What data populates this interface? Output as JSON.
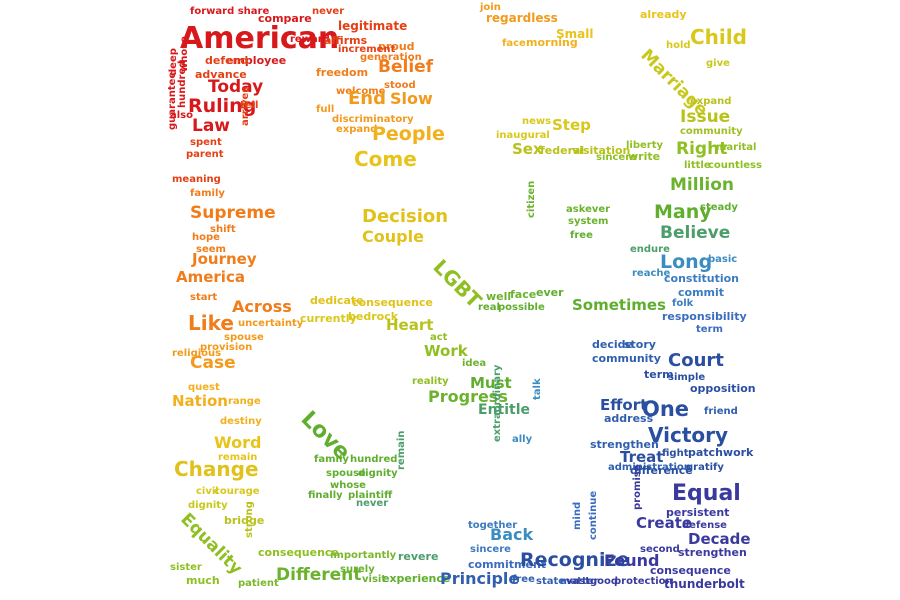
{
  "image": {
    "kind": "word-cloud",
    "subject": "LGBT love / marriage equality",
    "palette": {
      "red": "#d7191c",
      "orange": "#f07c1a",
      "yellow": "#e0c21a",
      "green": "#5fae2e",
      "blue": "#2b4fa0",
      "indigo": "#3a3a9e"
    }
  },
  "words": {
    "american": "American",
    "today": "Today",
    "ruling": "Ruling",
    "law": "Law",
    "supreme": "Supreme",
    "journey": "Journey",
    "america": "America",
    "like": "Like",
    "across": "Across",
    "case": "Case",
    "nation": "Nation",
    "word": "Word",
    "change": "Change",
    "equality": "Equality",
    "different": "Different",
    "belief": "Belief",
    "end": "End",
    "slow": "Slow",
    "people": "People",
    "come": "Come",
    "decision": "Decision",
    "couple": "Couple",
    "heart": "Heart",
    "work": "Work",
    "progress": "Progress",
    "must": "Must",
    "entitle": "Entitle",
    "love": "Love",
    "lgbt": "LGBT",
    "back": "Back",
    "principle": "Principle",
    "recognize": "Recognize",
    "found": "Found",
    "sometimes": "Sometimes",
    "step": "Step",
    "sex": "Sex",
    "child": "Child",
    "marriage": "Marriage",
    "issue": "Issue",
    "right": "Right",
    "million": "Million",
    "many": "Many",
    "believe": "Believe",
    "long": "Long",
    "court": "Court",
    "one": "One",
    "victory": "Victory",
    "effort": "Effort",
    "treat": "Treat",
    "equal": "Equal",
    "create": "Create",
    "decade": "Decade",
    "small": "Small",
    "employee": "employee",
    "forward_share": "forward share",
    "compare": "compare",
    "legitimate": "legitimate",
    "reward": "reward",
    "defend": "defend",
    "advance": "advance",
    "freedom": "freedom",
    "welcome": "welcome",
    "proud": "proud",
    "generation": "generation",
    "stood": "stood",
    "regardless": "regardless",
    "morning": "morning",
    "face": "face",
    "join": "join",
    "already": "already",
    "hold": "hold",
    "give": "give",
    "expand": "expand",
    "community": "community",
    "marital": "marital",
    "little": "little",
    "countless": "countless",
    "steady": "steady",
    "endure": "endure",
    "reache": "reache",
    "basic": "basic",
    "constitution": "constitution",
    "commit": "commit",
    "responsibility": "responsibility",
    "folk": "folk",
    "opposition": "opposition",
    "decide": "decide",
    "story": "story",
    "term": "term",
    "friend": "friend",
    "strengthen": "strengthen",
    "difference": "difference",
    "patchwork": "patchwork",
    "persistent": "persistent",
    "defense": "defense",
    "second": "second",
    "thunderbolt": "thunderbolt",
    "vast": "vast",
    "good": "good",
    "protection": "protection",
    "well": "well",
    "free": "free",
    "state": "state",
    "matter": "matter",
    "commitment": "commitment",
    "sincere": "sincere",
    "revere": "revere",
    "experience": "experience",
    "visit": "visit",
    "surely": "surely",
    "consequence": "consequence",
    "patient": "patient",
    "importantly": "importantly",
    "much": "much",
    "sister": "sister",
    "civil": "civil",
    "courage": "courage",
    "dignity": "dignity",
    "bridge": "bridge",
    "strong": "strong",
    "remain": "remain",
    "destiny": "destiny",
    "range": "range",
    "quest": "quest",
    "provision": "provision",
    "spouse": "spouse",
    "religious": "religious",
    "uncertainty": "uncertainty",
    "start": "start",
    "shift": "shift",
    "hope": "hope",
    "seem": "seem",
    "family": "family",
    "meaning": "meaning",
    "parent": "parent",
    "guarantee": "guarantee",
    "hundred": "hundred",
    "whose": "whose",
    "deep": "deep",
    "also": "also",
    "spent": "spent",
    "arrives": "arrives",
    "tell": "tell",
    "never": "never",
    "affirms": "affirms",
    "increment": "increment",
    "full": "full",
    "discriminatory": "discriminatory",
    "inaugural": "inaugural",
    "news": "news",
    "federal": "federal",
    "visitation": "visitation",
    "write": "write",
    "liberty": "liberty",
    "citizen": "citizen",
    "system": "system",
    "askever": "askever",
    "dedicate": "dedicate",
    "currently": "currently",
    "bedrock": "bedrock",
    "possible": "possible",
    "ever": "ever",
    "real": "real",
    "extraordinary": "extraordinary",
    "finally": "finally",
    "plaintiff": "plaintiff",
    "together": "together",
    "mind": "mind",
    "ally": "ally",
    "talk": "talk",
    "address": "address",
    "administration": "administration",
    "promise": "promise",
    "continue": "continue",
    "gratify": "gratify",
    "simple": "simple",
    "fight": "fight",
    "act": "act",
    "reality": "reality",
    "idea": "idea"
  }
}
